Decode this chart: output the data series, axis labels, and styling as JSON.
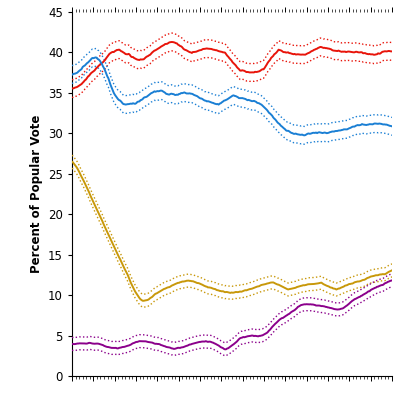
{
  "ylabel": "Percent of Popular Vote",
  "ylim": [
    0,
    45
  ],
  "yticks": [
    0,
    5,
    10,
    15,
    20,
    25,
    30,
    35,
    40,
    45
  ],
  "n_points": 300,
  "colors": {
    "red": "#e8140a",
    "blue": "#1a7fd4",
    "gold": "#c8980a",
    "purple": "#8b008b"
  },
  "background_color": "#ffffff",
  "linewidth": 1.4,
  "dotted_linewidth": 1.0
}
